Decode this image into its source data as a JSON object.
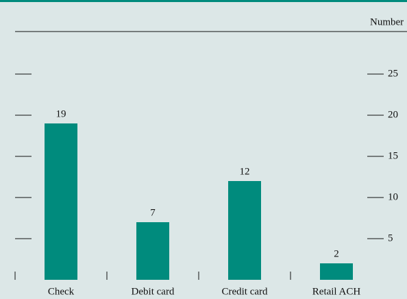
{
  "chart_data": {
    "type": "bar",
    "y_axis_label": "Number",
    "categories": [
      "Check",
      "Debit card",
      "Credit card",
      "Retail ACH"
    ],
    "values": [
      19,
      7,
      12,
      2
    ],
    "color": "#008b7d",
    "ylim": [
      0,
      30
    ],
    "yticks": [
      5,
      10,
      15,
      20,
      25
    ],
    "grid": false
  }
}
